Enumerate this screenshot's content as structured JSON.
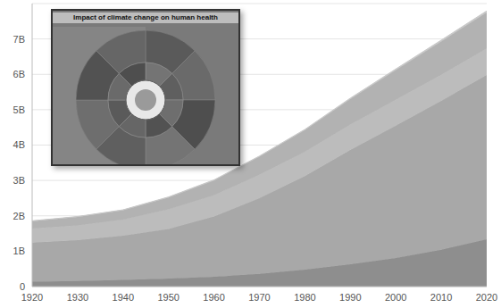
{
  "chart_data": {
    "type": "area",
    "stacked": true,
    "grid": true,
    "annotations": [
      "Impact of climate change on human health"
    ],
    "x": [
      1920,
      1930,
      1940,
      1950,
      1960,
      1970,
      1980,
      1990,
      2000,
      2010,
      2020
    ],
    "xlim": [
      1920,
      2020
    ],
    "xticks": [
      1920,
      1930,
      1940,
      1950,
      1960,
      1970,
      1980,
      1990,
      2000,
      2010,
      2020
    ],
    "ylim": [
      0,
      8
    ],
    "yticks": [
      0,
      {
        "value": 1,
        "label": "1B"
      },
      {
        "value": 2,
        "label": "2B"
      },
      {
        "value": 3,
        "label": "3B"
      },
      {
        "value": 4,
        "label": "4B"
      },
      {
        "value": 5,
        "label": "5B"
      },
      {
        "value": 6,
        "label": "6B"
      },
      {
        "value": 7,
        "label": "7B"
      }
    ],
    "series": [
      {
        "color": "#8e8e8e",
        "values": [
          0.14,
          0.16,
          0.19,
          0.23,
          0.28,
          0.36,
          0.48,
          0.63,
          0.81,
          1.04,
          1.34
        ]
      },
      {
        "color": "#a8a8a8",
        "values": [
          1.1,
          1.15,
          1.25,
          1.4,
          1.7,
          2.14,
          2.64,
          3.23,
          3.74,
          4.21,
          4.64
        ]
      },
      {
        "color": "#bcbcbc",
        "values": [
          0.4,
          0.42,
          0.45,
          0.55,
          0.6,
          0.66,
          0.69,
          0.72,
          0.73,
          0.74,
          0.75
        ]
      },
      {
        "color": "#b2b2b2",
        "values": [
          0.21,
          0.24,
          0.27,
          0.34,
          0.42,
          0.51,
          0.61,
          0.72,
          0.84,
          0.94,
          1.02
        ]
      },
      {
        "color": "#c8c8c8",
        "values": [
          0.01,
          0.01,
          0.01,
          0.013,
          0.016,
          0.02,
          0.023,
          0.027,
          0.031,
          0.037,
          0.043
        ]
      }
    ]
  }
}
